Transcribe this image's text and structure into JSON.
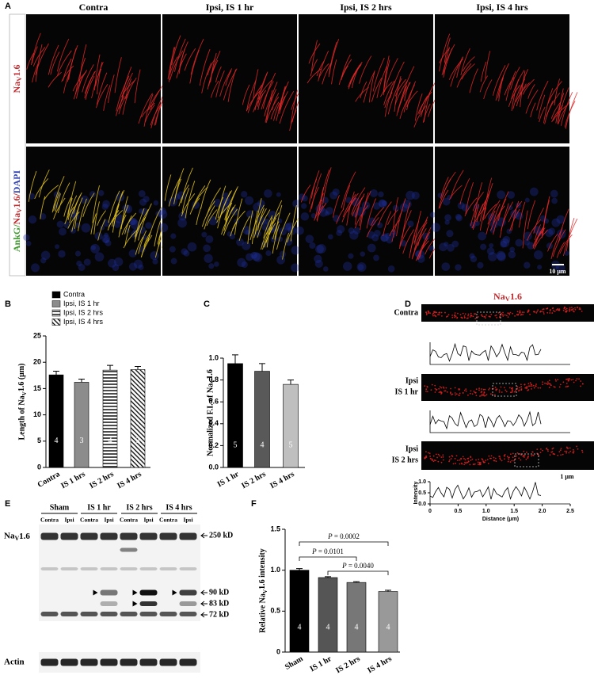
{
  "figure_a": {
    "panel": "A",
    "columns": [
      "Contra",
      "Ipsi, IS 1 hr",
      "Ipsi, IS 2 hrs",
      "Ipsi, IS 4 hrs"
    ],
    "rows": [
      [
        "NaV1.6"
      ],
      [
        "AnkG/",
        "NaV1.6/",
        "DAPI"
      ]
    ],
    "scale_bar": "10 μm"
  },
  "chart_data": [
    {
      "panel": "B",
      "type": "bar",
      "ylabel": "Length of NaV1.6 (μm)",
      "categories": [
        "Contra",
        "IS 1 hrs",
        "IS 2 hrs",
        "IS 4 hrs"
      ],
      "legend": [
        "Contra",
        "Ipsi, IS 1 hr",
        "Ipsi, IS 2 hrs",
        "Ipsi, IS 4 hrs"
      ],
      "values": [
        17.6,
        16.2,
        18.5,
        18.6
      ],
      "errors": [
        0.7,
        0.6,
        0.9,
        0.6
      ],
      "n_labels": [
        "4",
        "3",
        "4",
        "3"
      ],
      "fills": [
        "black",
        "gray",
        "horizontal-stripes",
        "diagonal-stripes"
      ],
      "ylim": [
        0,
        25
      ],
      "yticks": [
        0,
        5,
        10,
        15,
        20,
        25
      ]
    },
    {
      "panel": "C",
      "type": "bar",
      "ylabel": "Normalized F.I. of NaV1.6",
      "categories": [
        "IS 1 hr",
        "IS 2 hrs",
        "IS 4 hrs"
      ],
      "values": [
        0.95,
        0.88,
        0.76
      ],
      "errors": [
        0.08,
        0.07,
        0.04
      ],
      "n_labels": [
        "5",
        "4",
        "5"
      ],
      "fills": [
        "#000000",
        "#595959",
        "#bfbfbf"
      ],
      "ylim": [
        0,
        1
      ],
      "yticks": [
        {
          "value": 0,
          "label": "0.0"
        },
        0.2,
        0.4,
        0.6,
        0.8,
        {
          "value": 1,
          "label": "1.0"
        }
      ]
    },
    {
      "panel": "F",
      "type": "bar",
      "ylabel": "Relative NaV1.6 intensity",
      "categories": [
        "Sham",
        "IS 1 hr",
        "IS 2 hrs",
        "IS 4 hrs"
      ],
      "values": [
        1.0,
        0.91,
        0.85,
        0.74
      ],
      "errors": [
        0.02,
        0.01,
        0.01,
        0.015
      ],
      "n_labels": [
        "4",
        "4",
        "4",
        "4"
      ],
      "fills": [
        "#000000",
        "#555555",
        "#777777",
        "#999999"
      ],
      "ylim": [
        0,
        1.5
      ],
      "yticks": [
        0,
        0.5,
        {
          "value": 1,
          "label": "1.0"
        },
        1.5
      ],
      "comparisons": [
        {
          "from": 0,
          "to": 3,
          "label": "P = 0.0002"
        },
        {
          "from": 0,
          "to": 2,
          "label": "P = 0.0101"
        },
        {
          "from": 1,
          "to": 3,
          "label": "P = 0.0040"
        }
      ]
    }
  ],
  "figure_d": {
    "panel": "D",
    "title": "NaV1.6",
    "rows": [
      [
        "Contra"
      ],
      [
        "Ipsi",
        "IS 1 hr"
      ],
      [
        "Ipsi",
        "IS 2 hrs"
      ]
    ],
    "scale_bar": "1 μm",
    "ylabel": "Intensity",
    "xlabel": "Distance (μm)",
    "xlim": [
      0,
      2.5
    ],
    "ylim": [
      0,
      1
    ],
    "xticks": [
      0,
      0.5,
      {
        "value": 1,
        "label": "1.0"
      },
      1.5,
      {
        "value": 2,
        "label": "2.0"
      },
      2.5
    ],
    "yticks": [
      {
        "value": 0,
        "label": "0.0"
      },
      0.5,
      {
        "value": 1,
        "label": "1.0"
      }
    ]
  },
  "figure_e": {
    "panel": "E",
    "groups": [
      "Sham",
      "IS 1 hr",
      "IS 2 hrs",
      "IS 4 hrs"
    ],
    "lanes": [
      "Contra",
      "Ipsi",
      "Contra",
      "Ipsi",
      "Contra",
      "Ipsi",
      "Contra",
      "Ipsi"
    ],
    "proteins": [
      "NaV1.6",
      "Actin"
    ],
    "markers": [
      "250 kD",
      "90 kD",
      "83 kD",
      "72 kD"
    ]
  }
}
